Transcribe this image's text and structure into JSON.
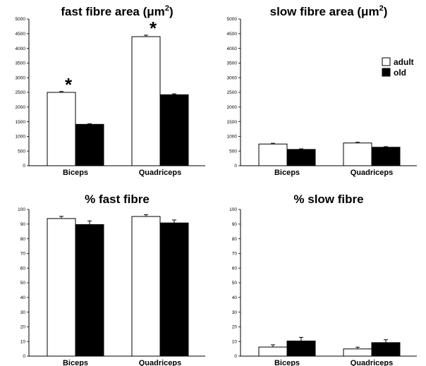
{
  "chart_data": [
    {
      "type": "bar",
      "title": "fast fibre area (",
      "title_unit": "μm",
      "title_sup": "2",
      "title_close": ")",
      "categories": [
        "Biceps",
        "Quadriceps"
      ],
      "series": [
        {
          "name": "adult",
          "values": [
            2500,
            4400
          ],
          "errors": [
            30,
            50
          ]
        },
        {
          "name": "old",
          "values": [
            1410,
            2420
          ],
          "errors": [
            20,
            30
          ]
        }
      ],
      "ylim": [
        0,
        5000
      ],
      "yticks": [
        "0",
        "500",
        "1000",
        "1500",
        "2000",
        "2500",
        "3000",
        "3500",
        "4000",
        "4500",
        "5000"
      ],
      "significance": [
        {
          "category": 0,
          "symbol": "*"
        },
        {
          "category": 1,
          "symbol": "*"
        }
      ]
    },
    {
      "type": "bar",
      "title": "slow fibre area (",
      "title_unit": "μm",
      "title_sup": "2",
      "title_close": ")",
      "categories": [
        "Biceps",
        "Quadriceps"
      ],
      "series": [
        {
          "name": "adult",
          "values": [
            740,
            775
          ],
          "errors": [
            25,
            25
          ]
        },
        {
          "name": "old",
          "values": [
            555,
            630
          ],
          "errors": [
            20,
            20
          ]
        }
      ],
      "ylim": [
        0,
        5000
      ],
      "yticks": [
        "0",
        "500",
        "1000",
        "1500",
        "2000",
        "2500",
        "3000",
        "3500",
        "4000",
        "4500",
        "5000"
      ],
      "legend": {
        "position": "top-right",
        "entries": [
          "adult",
          "old"
        ]
      }
    },
    {
      "type": "bar",
      "title": "% fast fibre",
      "categories": [
        "Biceps",
        "Quadriceps"
      ],
      "series": [
        {
          "name": "adult",
          "values": [
            93.8,
            95.2
          ],
          "errors": [
            1.5,
            1.2
          ]
        },
        {
          "name": "old",
          "values": [
            89.7,
            90.8
          ],
          "errors": [
            2.5,
            2.0
          ]
        }
      ],
      "ylim": [
        0,
        100
      ],
      "yticks": [
        "0",
        "10",
        "20",
        "30",
        "40",
        "50",
        "60",
        "70",
        "80",
        "90",
        "100"
      ]
    },
    {
      "type": "bar",
      "title": "% slow fibre",
      "categories": [
        "Biceps",
        "Quadriceps"
      ],
      "series": [
        {
          "name": "adult",
          "values": [
            6.2,
            4.9
          ],
          "errors": [
            1.5,
            1.2
          ]
        },
        {
          "name": "old",
          "values": [
            10.3,
            9.2
          ],
          "errors": [
            2.5,
            2.0
          ]
        }
      ],
      "ylim": [
        0,
        100
      ],
      "yticks": [
        "0",
        "10",
        "20",
        "30",
        "40",
        "50",
        "60",
        "70",
        "80",
        "90",
        "100"
      ]
    }
  ],
  "colors": {
    "adult": "#ffffff",
    "old": "#000000",
    "stroke": "#000000"
  }
}
